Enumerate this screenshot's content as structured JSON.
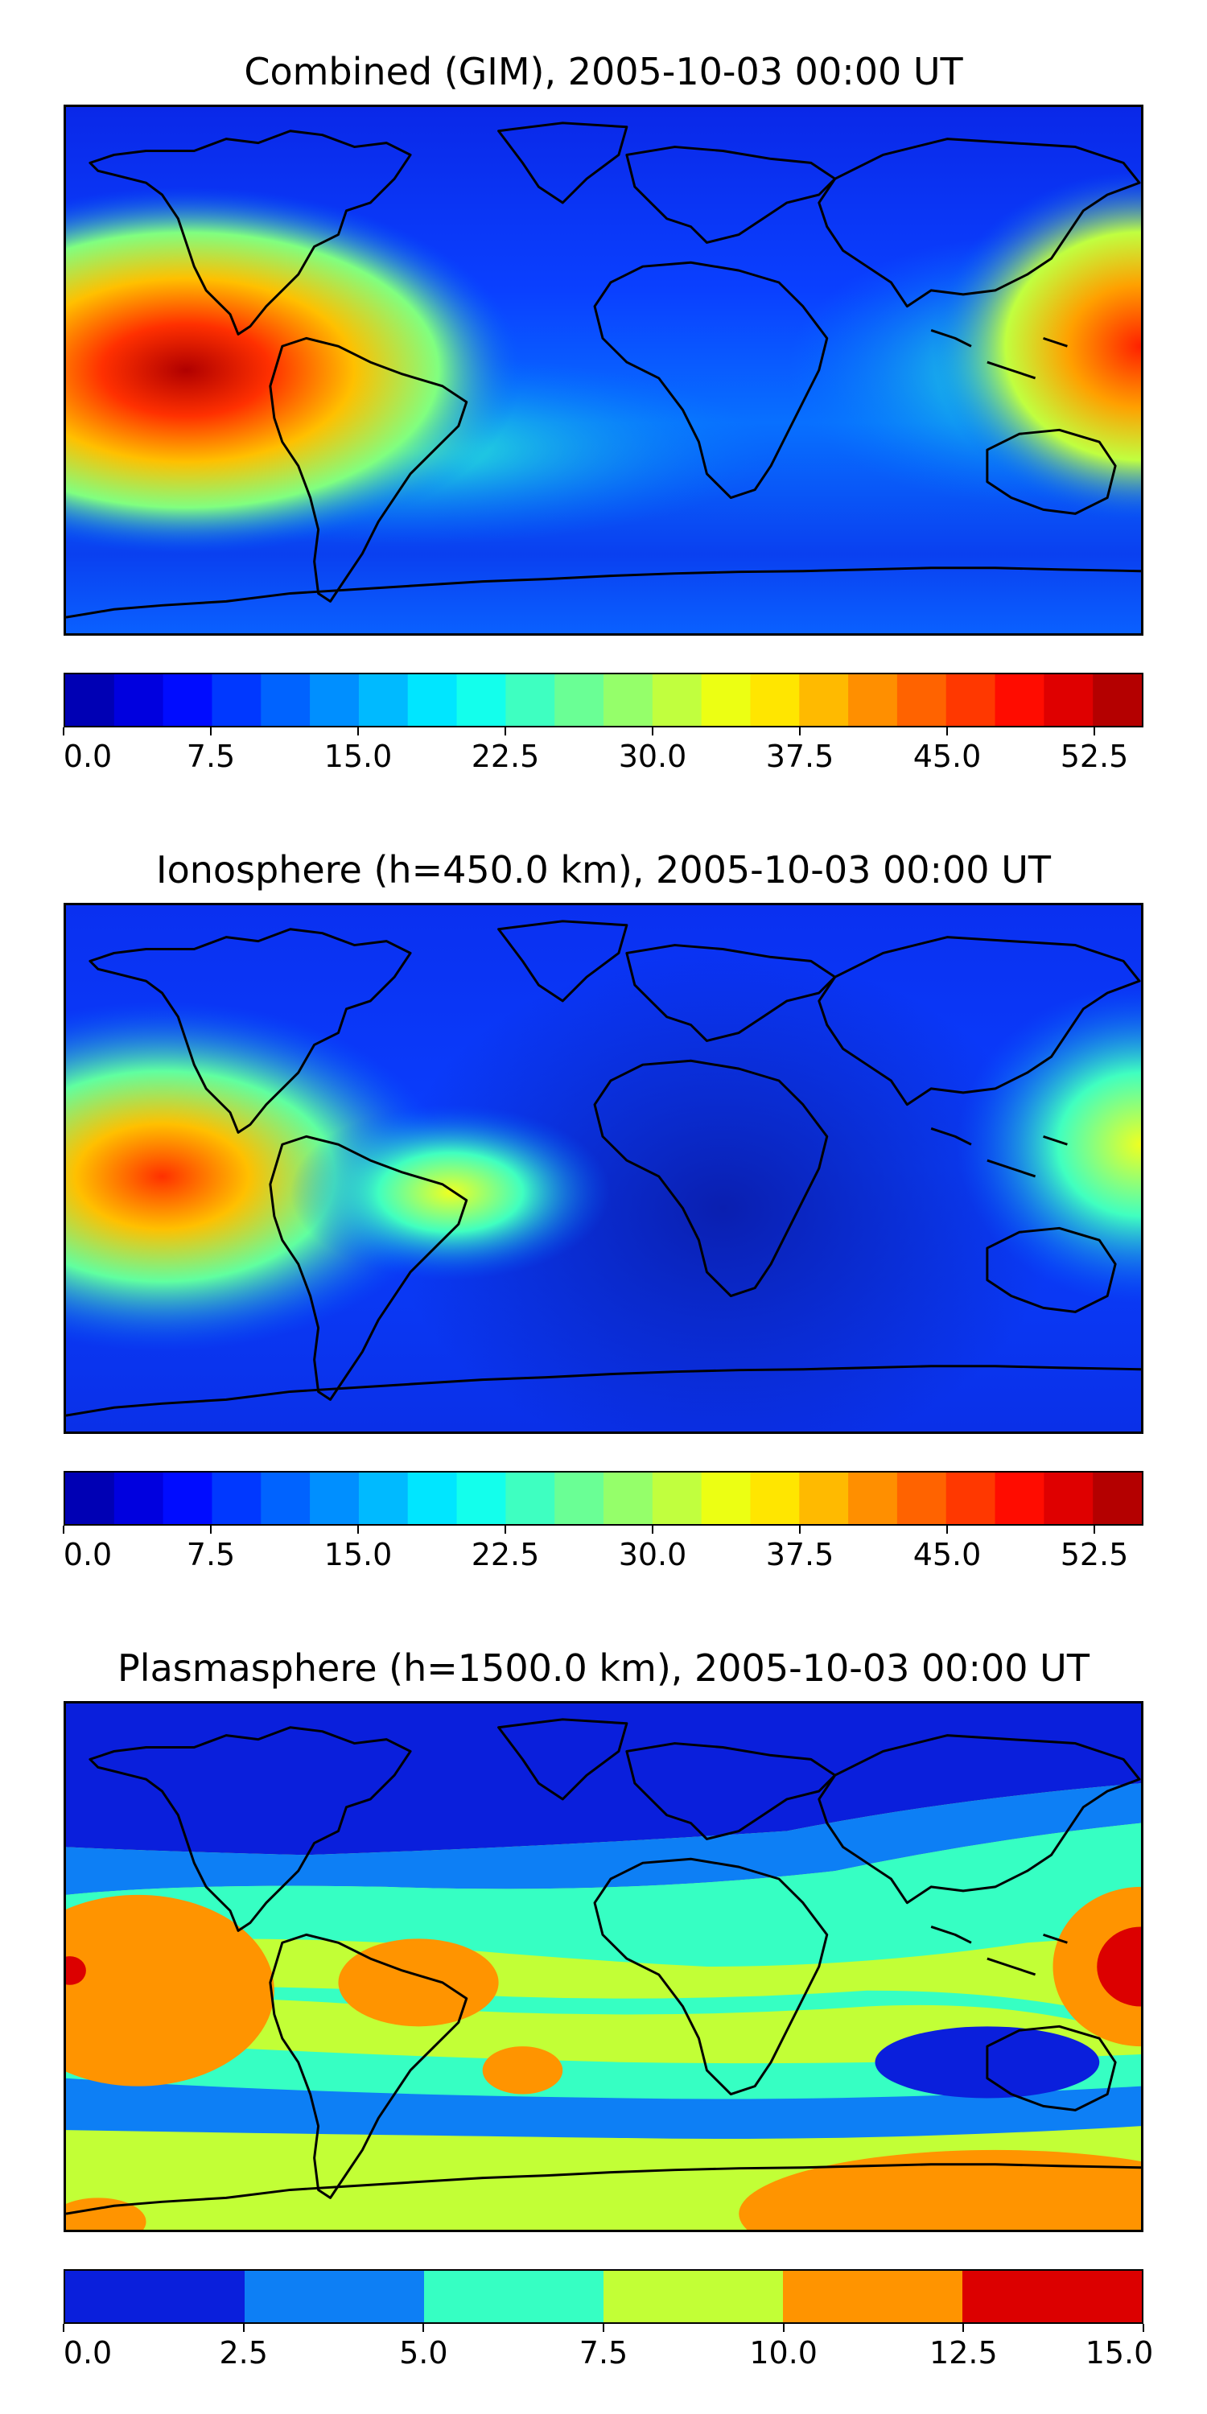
{
  "panels": [
    {
      "title": "Combined (GIM), 2005-10-03 00:00 UT",
      "colorbar": {
        "ticks": [
          "0.0",
          "7.5",
          "15.0",
          "22.5",
          "30.0",
          "37.5",
          "45.0",
          "52.5"
        ],
        "tick_values": [
          0,
          7.5,
          15,
          22.5,
          30,
          37.5,
          45,
          52.5
        ],
        "min": 0,
        "max": 55,
        "levels": 22
      }
    },
    {
      "title": "Ionosphere  (h=450.0 km), 2005-10-03 00:00 UT",
      "colorbar": {
        "ticks": [
          "0.0",
          "7.5",
          "15.0",
          "22.5",
          "30.0",
          "37.5",
          "45.0",
          "52.5"
        ],
        "tick_values": [
          0,
          7.5,
          15,
          22.5,
          30,
          37.5,
          45,
          52.5
        ],
        "min": 0,
        "max": 55,
        "levels": 22
      }
    },
    {
      "title": "Plasmasphere (h=1500.0 km), 2005-10-03 00:00 UT",
      "colorbar": {
        "ticks": [
          "0.0",
          "2.5",
          "5.0",
          "7.5",
          "10.0",
          "12.5",
          "15.0"
        ],
        "tick_values": [
          0,
          2.5,
          5,
          7.5,
          10,
          12.5,
          15
        ],
        "min": 0,
        "max": 15,
        "levels": 6,
        "colors": [
          "#0a1fdc",
          "#0d7ff5",
          "#36ffc3",
          "#c2ff36",
          "#ff9400",
          "#dc0000"
        ]
      }
    }
  ],
  "colormap": "jet"
}
